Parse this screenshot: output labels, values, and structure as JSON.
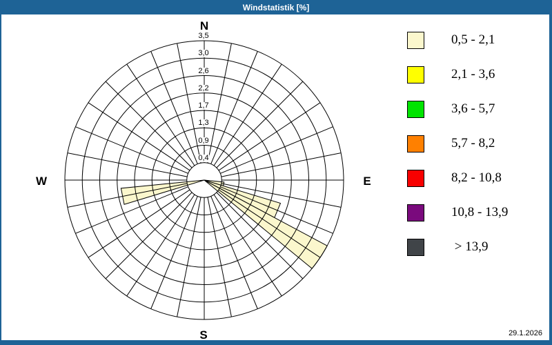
{
  "window": {
    "title": "Windstatistik [%]",
    "frame_color": "#1e6396",
    "date": "29.1.2026"
  },
  "compass": {
    "north": "N",
    "east": "E",
    "south": "S",
    "west": "W"
  },
  "chart_data": {
    "type": "windrose",
    "title": "Windstatistik [%]",
    "unit": "%",
    "radial_axis": {
      "tick_labels": [
        "0,4",
        "0,9",
        "1,3",
        "1,7",
        "2,2",
        "2,6",
        "3,0",
        "3,5"
      ],
      "max_value": 3.5,
      "rings": 8
    },
    "sector_count": 32,
    "sector_width_deg": 11.25,
    "grid_color": "#000000",
    "series": [
      {
        "speed_class": "0,5 - 2,1",
        "color": "#fbf7cd",
        "points": [
          {
            "direction_deg": 101.25,
            "value": 0.5
          },
          {
            "direction_deg": 112.5,
            "value": 2.0
          },
          {
            "direction_deg": 123.75,
            "value": 3.5
          },
          {
            "direction_deg": 258.75,
            "value": 2.1
          }
        ]
      }
    ],
    "legend": [
      {
        "label": "0,5 - 2,1",
        "color": "#fbf7cd"
      },
      {
        "label": "2,1 - 3,6",
        "color": "#ffff00"
      },
      {
        "label": "3,6 - 5,7",
        "color": "#00e400"
      },
      {
        "label": "5,7 - 8,2",
        "color": "#ff8000"
      },
      {
        "label": "8,2 - 10,8",
        "color": "#f80000"
      },
      {
        "label": "10,8 - 13,9",
        "color": "#7a0a7d"
      },
      {
        "label": " > 13,9",
        "color": "#404448"
      }
    ],
    "legend_position": "right"
  }
}
